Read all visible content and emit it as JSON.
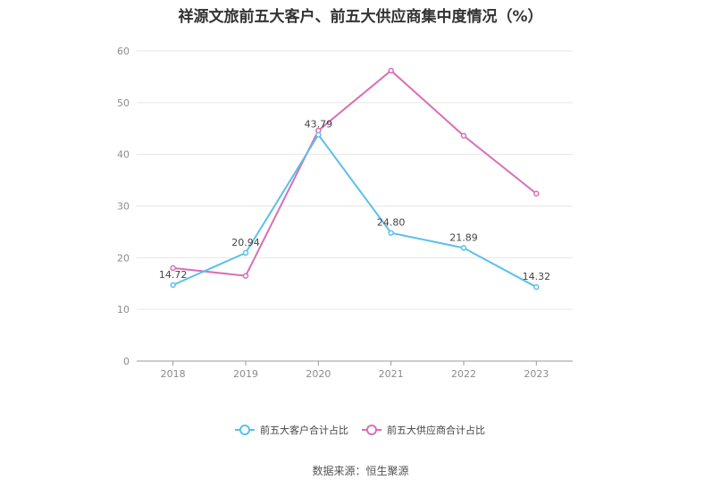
{
  "chart_data": {
    "type": "line",
    "title": "祥源文旅前五大客户、前五大供应商集中度情况（%）",
    "categories": [
      "2018",
      "2019",
      "2020",
      "2021",
      "2022",
      "2023"
    ],
    "ylim": [
      0,
      60
    ],
    "yticks": [
      0,
      10,
      20,
      30,
      40,
      50,
      60
    ],
    "grid": true,
    "legend_position": "bottom",
    "series": [
      {
        "name": "前五大客户合计占比",
        "color": "#5bc0eb",
        "values": [
          14.72,
          20.94,
          43.79,
          24.8,
          21.89,
          14.32
        ],
        "labels": [
          "14.72",
          "20.94",
          "43.79",
          "24.80",
          "21.89",
          "14.32"
        ]
      },
      {
        "name": "前五大供应商合计占比",
        "color": "#d96fb5",
        "values": [
          18.0,
          16.5,
          44.6,
          56.2,
          43.6,
          32.4
        ]
      }
    ]
  },
  "source": "数据来源：恒生聚源"
}
